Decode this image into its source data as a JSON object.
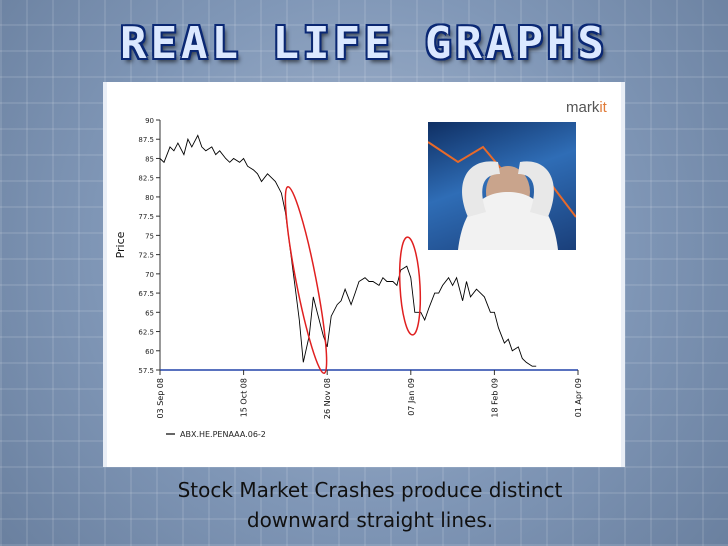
{
  "header": {
    "title": "REAL LIFE GRAPHS"
  },
  "logo": {
    "main": "mark",
    "accent": "it"
  },
  "caption": {
    "line1": "Stock Market Crashes produce distinct",
    "line2": "downward straight lines."
  },
  "chart_data": {
    "type": "line",
    "title": "",
    "xlabel": "",
    "ylabel": "Price",
    "ylim": [
      57.5,
      90
    ],
    "y_ticks": [
      "90",
      "87.5",
      "85",
      "82.5",
      "80",
      "77.5",
      "75",
      "72.5",
      "70",
      "67.5",
      "65",
      "62.5",
      "60",
      "57.5"
    ],
    "x_ticks": [
      "03 Sep 08",
      "15 Oct 08",
      "26 Nov 08",
      "07 Jan 09",
      "18 Feb 09",
      "01 Apr 09"
    ],
    "legend": {
      "position": "bottom-left",
      "entries": [
        "ABX.HE.PENAAA.06-2"
      ]
    },
    "grid": false,
    "series": [
      {
        "name": "ABX.HE.PENAAA.06-2",
        "x": [
          "2008-09-03",
          "2008-09-05",
          "2008-09-08",
          "2008-09-10",
          "2008-09-12",
          "2008-09-15",
          "2008-09-17",
          "2008-09-19",
          "2008-09-22",
          "2008-09-24",
          "2008-09-26",
          "2008-09-29",
          "2008-10-01",
          "2008-10-03",
          "2008-10-06",
          "2008-10-08",
          "2008-10-10",
          "2008-10-13",
          "2008-10-15",
          "2008-10-17",
          "2008-10-20",
          "2008-10-22",
          "2008-10-24",
          "2008-10-27",
          "2008-10-29",
          "2008-10-31",
          "2008-11-03",
          "2008-11-05",
          "2008-11-07",
          "2008-11-10",
          "2008-11-12",
          "2008-11-14",
          "2008-11-17",
          "2008-11-19",
          "2008-11-21",
          "2008-11-24",
          "2008-11-26",
          "2008-11-28",
          "2008-12-01",
          "2008-12-03",
          "2008-12-05",
          "2008-12-08",
          "2008-12-10",
          "2008-12-12",
          "2008-12-15",
          "2008-12-17",
          "2008-12-19",
          "2008-12-22",
          "2008-12-24",
          "2008-12-26",
          "2008-12-29",
          "2008-12-31",
          "2009-01-02",
          "2009-01-05",
          "2009-01-07",
          "2009-01-09",
          "2009-01-12",
          "2009-01-14",
          "2009-01-16",
          "2009-01-19",
          "2009-01-21",
          "2009-01-23",
          "2009-01-26",
          "2009-01-28",
          "2009-01-30",
          "2009-02-02",
          "2009-02-04",
          "2009-02-06",
          "2009-02-09",
          "2009-02-11",
          "2009-02-13",
          "2009-02-16",
          "2009-02-18",
          "2009-02-20",
          "2009-02-23",
          "2009-02-25",
          "2009-02-27",
          "2009-03-02",
          "2009-03-04",
          "2009-03-06",
          "2009-03-09",
          "2009-03-11"
        ],
        "y": [
          85.0,
          84.5,
          86.5,
          86.0,
          87.0,
          85.5,
          87.5,
          86.5,
          88.0,
          86.5,
          86.0,
          86.5,
          85.5,
          86.0,
          85.0,
          84.5,
          85.0,
          84.5,
          85.0,
          84.0,
          83.5,
          83.0,
          82.0,
          83.0,
          82.5,
          82.0,
          80.5,
          78.0,
          74.0,
          68.0,
          64.0,
          58.5,
          62.0,
          67.0,
          65.0,
          62.0,
          60.5,
          64.5,
          66.0,
          66.5,
          68.0,
          66.0,
          67.5,
          69.0,
          69.5,
          69.0,
          69.0,
          68.5,
          69.5,
          69.0,
          69.0,
          68.5,
          70.5,
          71.0,
          69.5,
          65.0,
          65.0,
          64.0,
          65.5,
          67.5,
          67.5,
          68.5,
          69.5,
          68.5,
          69.5,
          66.5,
          69.0,
          67.0,
          68.0,
          67.5,
          67.0,
          65.0,
          65.0,
          63.0,
          61.0,
          61.5,
          60.0,
          60.5,
          59.0,
          58.5,
          58.0,
          58.0
        ]
      }
    ],
    "line_color": "#000000",
    "annotation_color": "#e02020"
  }
}
